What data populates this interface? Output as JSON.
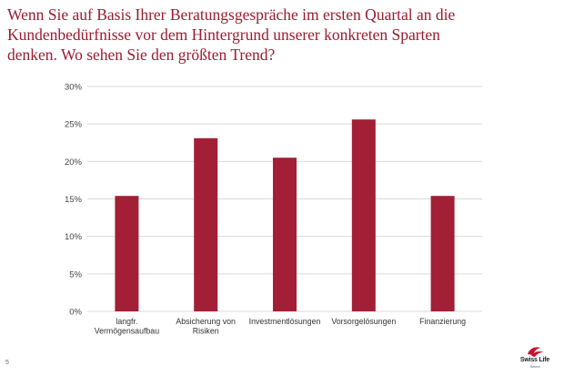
{
  "slide": {
    "title_lines": [
      "Wenn Sie auf Basis Ihrer Beratungsgespräche im ersten Quartal an die",
      "Kundenbedürfnisse vor dem Hintergrund unserer konkreten Sparten",
      "denken. Wo sehen Sie den größten Trend?"
    ],
    "page_number": "5",
    "logo": {
      "text": "Swiss Life",
      "subtext": "Select"
    }
  },
  "colors": {
    "bar": "#a31f36",
    "title": "#9b1b30",
    "grid": "#d9d9d9"
  },
  "chart_data": {
    "type": "bar",
    "categories": [
      [
        "langfr.",
        "Vermögensaufbau"
      ],
      [
        "Absicherung von",
        "Risiken"
      ],
      [
        "Investmentlösungen"
      ],
      [
        "Vorsorgelösungen"
      ],
      [
        "Finanzierung"
      ]
    ],
    "values": [
      15.4,
      23.1,
      20.5,
      25.6,
      15.4
    ],
    "ylim": [
      0,
      30
    ],
    "yticks": [
      0,
      5,
      10,
      15,
      20,
      25,
      30
    ],
    "ytick_labels": [
      "0%",
      "5%",
      "10%",
      "15%",
      "20%",
      "25%",
      "30%"
    ],
    "grid": true,
    "legend": "none"
  }
}
